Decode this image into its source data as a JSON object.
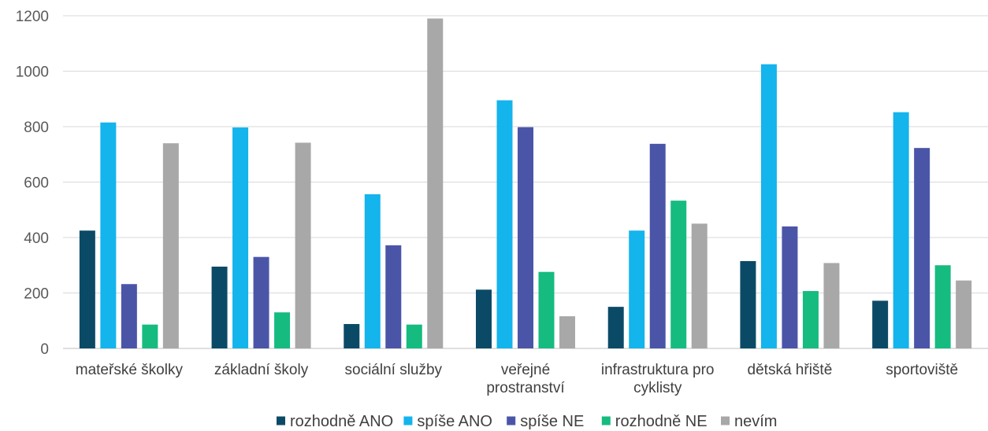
{
  "chart_data": {
    "type": "bar",
    "categories": [
      [
        "mateřské školky"
      ],
      [
        "základní školy"
      ],
      [
        "sociální služby"
      ],
      [
        "veřejné",
        "prostranství"
      ],
      [
        "infrastruktura pro",
        "cyklisty"
      ],
      [
        "dětská hřiště"
      ],
      [
        "sportoviště"
      ]
    ],
    "series": [
      {
        "name": "rozhodně ANO",
        "color": "#0b4a66",
        "values": [
          425,
          295,
          88,
          212,
          150,
          315,
          172
        ]
      },
      {
        "name": "spíše ANO",
        "color": "#14b4ec",
        "values": [
          815,
          797,
          556,
          895,
          425,
          1025,
          852
        ]
      },
      {
        "name": "spíše NE",
        "color": "#4b55a8",
        "values": [
          232,
          330,
          372,
          798,
          738,
          440,
          723
        ]
      },
      {
        "name": "rozhodně NE",
        "color": "#16bb80",
        "values": [
          86,
          130,
          86,
          276,
          533,
          207,
          300
        ]
      },
      {
        "name": "nevím",
        "color": "#a8a8a8",
        "values": [
          740,
          742,
          1190,
          116,
          450,
          308,
          245
        ]
      }
    ],
    "yticks": [
      0,
      200,
      400,
      600,
      800,
      1000,
      1200
    ],
    "ylim": [
      0,
      1200
    ],
    "grid": true,
    "legend_position": "bottom"
  }
}
